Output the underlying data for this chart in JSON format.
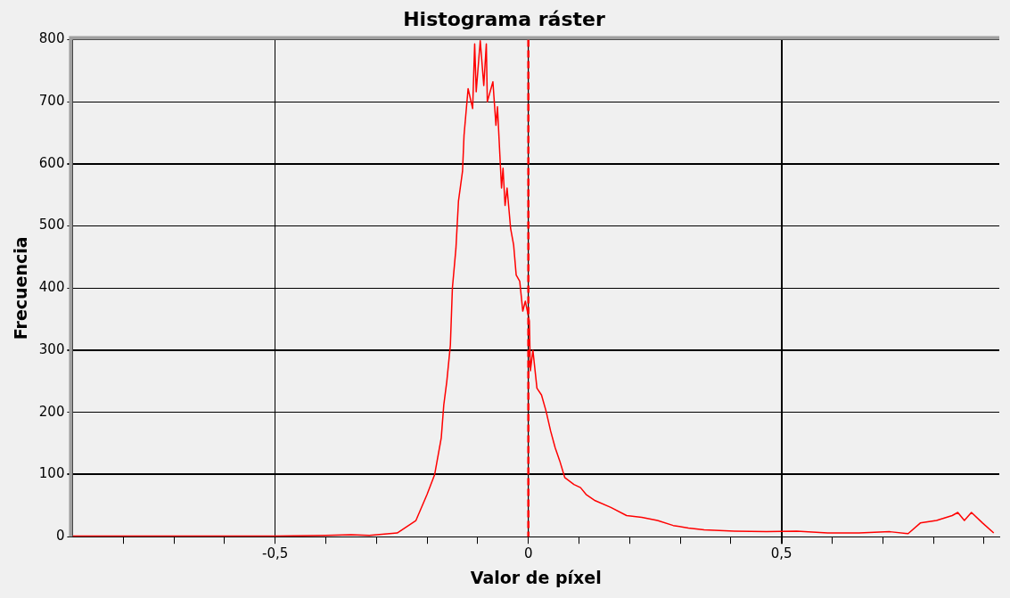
{
  "chart_data": {
    "type": "line",
    "title": "Histograma ráster",
    "xlabel": "Valor de píxel",
    "ylabel": "Frecuencia",
    "series": [
      {
        "color": "#ff0000",
        "x": [
          -0.9,
          -0.7,
          -0.5,
          -0.4,
          -0.35,
          -0.314,
          -0.259,
          -0.222,
          -0.2,
          -0.185,
          -0.172,
          -0.167,
          -0.161,
          -0.154,
          -0.15,
          -0.143,
          -0.138,
          -0.13,
          -0.127,
          -0.119,
          -0.11,
          -0.106,
          -0.103,
          -0.095,
          -0.088,
          -0.083,
          -0.081,
          -0.07,
          -0.064,
          -0.061,
          -0.053,
          -0.05,
          -0.046,
          -0.042,
          -0.035,
          -0.029,
          -0.024,
          -0.017,
          -0.011,
          -0.006,
          0.002,
          0.004,
          0.009,
          0.017,
          0.026,
          0.035,
          0.044,
          0.053,
          0.062,
          0.072,
          0.09,
          0.103,
          0.114,
          0.132,
          0.163,
          0.194,
          0.224,
          0.255,
          0.286,
          0.316,
          0.347,
          0.407,
          0.47,
          0.53,
          0.591,
          0.653,
          0.714,
          0.75,
          0.774,
          0.806,
          0.837,
          0.848,
          0.861,
          0.875,
          0.897,
          0.919
        ],
        "values": [
          1,
          1,
          1,
          2,
          3,
          2,
          6,
          26,
          68,
          100,
          159,
          212,
          250,
          308,
          400,
          464,
          540,
          588,
          646,
          721,
          689,
          793,
          716,
          798,
          726,
          793,
          700,
          732,
          662,
          692,
          561,
          593,
          533,
          561,
          496,
          469,
          421,
          411,
          363,
          379,
          347,
          267,
          300,
          239,
          228,
          202,
          170,
          143,
          122,
          95,
          84,
          79,
          68,
          58,
          47,
          34,
          31,
          26,
          18,
          14,
          11,
          9,
          8,
          9,
          6,
          6,
          8,
          5,
          22,
          26,
          34,
          39,
          26,
          39,
          22,
          6
        ]
      }
    ],
    "xlim": [
      -0.9,
      0.93
    ],
    "xticks": [
      {
        "value": -0.8,
        "label": null
      },
      {
        "value": -0.7,
        "label": null
      },
      {
        "value": -0.6,
        "label": null
      },
      {
        "value": -0.5,
        "label": "-0,5"
      },
      {
        "value": -0.4,
        "label": null
      },
      {
        "value": -0.3,
        "label": null
      },
      {
        "value": -0.2,
        "label": null
      },
      {
        "value": -0.1,
        "label": null
      },
      {
        "value": 0,
        "label": "0"
      },
      {
        "value": 0.1,
        "label": null
      },
      {
        "value": 0.2,
        "label": null
      },
      {
        "value": 0.3,
        "label": null
      },
      {
        "value": 0.4,
        "label": null
      },
      {
        "value": 0.5,
        "label": "0,5"
      },
      {
        "value": 0.6,
        "label": null
      },
      {
        "value": 0.7,
        "label": null
      },
      {
        "value": 0.8,
        "label": null
      },
      {
        "value": 0.9,
        "label": null
      }
    ],
    "ylim": [
      0,
      800
    ],
    "yticks": [
      0,
      100,
      200,
      300,
      400,
      500,
      600,
      700,
      800
    ],
    "ref_lines": [
      {
        "axis": "x",
        "value": 0,
        "color": "#ff0000",
        "line_style": "dashed"
      }
    ],
    "grid": true,
    "legend": false,
    "marker": "none",
    "line_style": "solid"
  }
}
